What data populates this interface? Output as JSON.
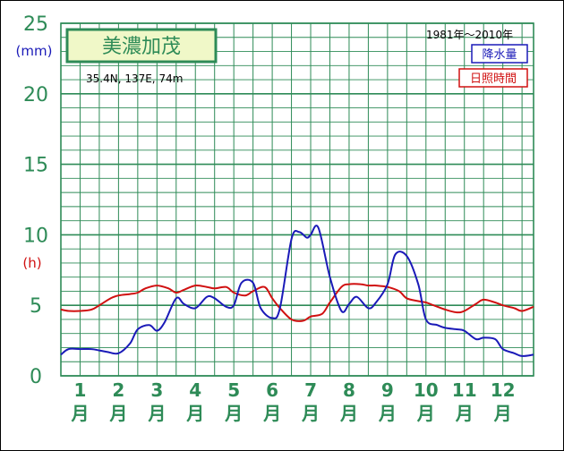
{
  "colors": {
    "grid": "#2e8b57",
    "precip": "#1a1ab8",
    "sunshine": "#d01010",
    "title_bg": "#f0f8c8"
  },
  "station": {
    "name": "美濃加茂",
    "location": "35.4N,  137E,  74m",
    "period": "1981年～2010年"
  },
  "legend": {
    "precip": "降水量",
    "sunshine": "日照時間"
  },
  "chart_data": {
    "type": "line",
    "title": "美濃加茂",
    "ylim": [
      0,
      25
    ],
    "y_ticks": [
      "0",
      "5",
      "10",
      "15",
      "20",
      "25"
    ],
    "y_unit_precip": "(mm)",
    "y_unit_sunshine": "(h)",
    "month_labels": [
      {
        "num": "1",
        "unit": "月"
      },
      {
        "num": "2",
        "unit": "月"
      },
      {
        "num": "3",
        "unit": "月"
      },
      {
        "num": "4",
        "unit": "月"
      },
      {
        "num": "5",
        "unit": "月"
      },
      {
        "num": "6",
        "unit": "月"
      },
      {
        "num": "7",
        "unit": "月"
      },
      {
        "num": "8",
        "unit": "月"
      },
      {
        "num": "9",
        "unit": "月"
      },
      {
        "num": "10",
        "unit": "月"
      },
      {
        "num": "11",
        "unit": "月"
      },
      {
        "num": "12",
        "unit": "月"
      }
    ],
    "x_range": [
      0.5,
      12.8
    ],
    "series": [
      {
        "name": "降水量",
        "key": "precip",
        "x": [
          0.5,
          0.7,
          1.0,
          1.3,
          1.5,
          1.7,
          2.0,
          2.3,
          2.5,
          2.8,
          3.0,
          3.2,
          3.5,
          3.7,
          4.0,
          4.3,
          4.5,
          4.8,
          5.0,
          5.2,
          5.5,
          5.7,
          6.0,
          6.2,
          6.5,
          6.7,
          6.9,
          7.0,
          7.2,
          7.5,
          7.8,
          8.0,
          8.2,
          8.5,
          8.7,
          9.0,
          9.2,
          9.5,
          9.8,
          10.0,
          10.3,
          10.5,
          10.8,
          11.0,
          11.3,
          11.5,
          11.8,
          12.0,
          12.3,
          12.5,
          12.8
        ],
        "y": [
          1.5,
          1.9,
          1.9,
          1.9,
          1.8,
          1.7,
          1.6,
          2.3,
          3.3,
          3.6,
          3.2,
          3.8,
          5.5,
          5.1,
          4.8,
          5.6,
          5.5,
          4.9,
          5.0,
          6.6,
          6.6,
          4.8,
          4.1,
          4.8,
          9.7,
          10.2,
          9.8,
          10.0,
          10.5,
          7.0,
          4.6,
          5.1,
          5.6,
          4.8,
          5.2,
          6.5,
          8.6,
          8.5,
          6.5,
          4.0,
          3.6,
          3.4,
          3.3,
          3.2,
          2.6,
          2.7,
          2.6,
          1.9,
          1.6,
          1.4,
          1.5
        ]
      },
      {
        "name": "日照時間",
        "key": "sunshine",
        "x": [
          0.5,
          0.7,
          1.0,
          1.3,
          1.5,
          1.8,
          2.0,
          2.3,
          2.5,
          2.7,
          3.0,
          3.3,
          3.5,
          3.7,
          4.0,
          4.3,
          4.5,
          4.8,
          5.0,
          5.3,
          5.5,
          5.8,
          6.0,
          6.2,
          6.5,
          6.8,
          7.0,
          7.3,
          7.5,
          7.8,
          8.0,
          8.3,
          8.5,
          8.7,
          9.0,
          9.3,
          9.5,
          9.8,
          10.0,
          10.2,
          10.5,
          10.8,
          11.0,
          11.3,
          11.5,
          11.8,
          12.0,
          12.3,
          12.5,
          12.8
        ],
        "y": [
          4.7,
          4.6,
          4.6,
          4.7,
          5.0,
          5.5,
          5.7,
          5.8,
          5.9,
          6.2,
          6.4,
          6.2,
          5.9,
          6.1,
          6.4,
          6.3,
          6.2,
          6.3,
          5.9,
          5.7,
          6.0,
          6.3,
          5.5,
          4.8,
          4.0,
          3.9,
          4.2,
          4.4,
          5.2,
          6.3,
          6.5,
          6.5,
          6.4,
          6.4,
          6.3,
          6.0,
          5.5,
          5.3,
          5.2,
          5.0,
          4.7,
          4.5,
          4.6,
          5.1,
          5.4,
          5.2,
          5.0,
          4.8,
          4.6,
          4.9
        ]
      }
    ]
  }
}
